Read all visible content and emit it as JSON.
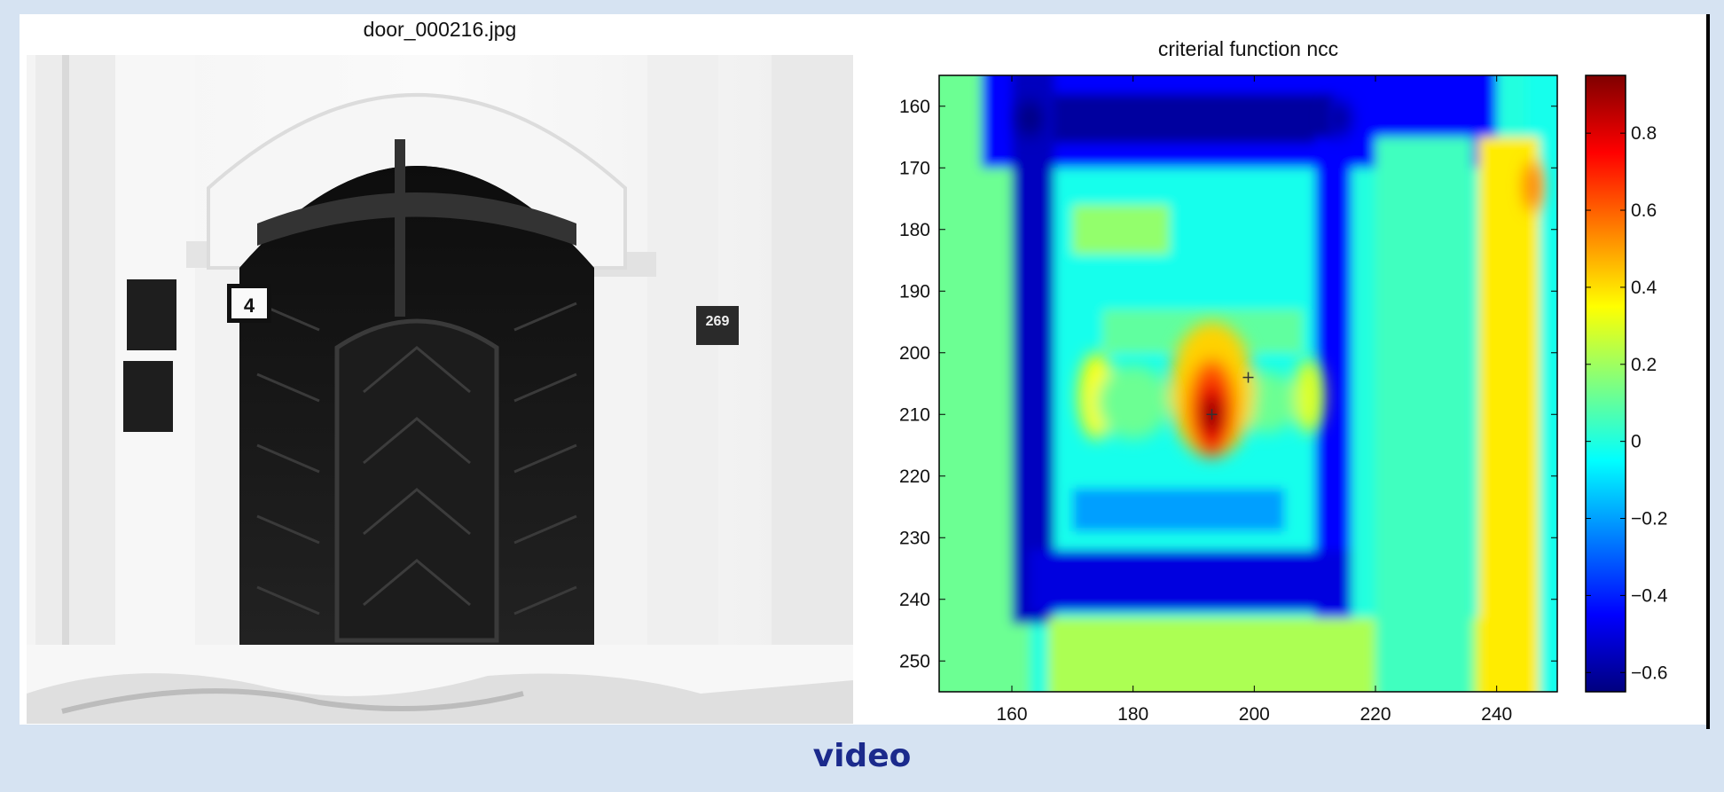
{
  "photo": {
    "title": "door_000216.jpg",
    "house_number": "4",
    "plaque_number": "269"
  },
  "footer": {
    "label": "video"
  },
  "chart_data": {
    "type": "heatmap",
    "title": "criterial function ncc",
    "xlabel": "",
    "ylabel": "",
    "xlim": [
      148,
      250
    ],
    "ylim": [
      155,
      255
    ],
    "x_ticks": [
      160,
      180,
      200,
      220,
      240
    ],
    "y_ticks": [
      160,
      170,
      180,
      190,
      200,
      210,
      220,
      230,
      240,
      250
    ],
    "y_axis_direction": "down",
    "grid": false,
    "colormap": "jet",
    "colorbar": {
      "min": -0.65,
      "max": 0.95,
      "ticks": [
        0.8,
        0.6,
        0.4,
        0.2,
        0,
        -0.2,
        -0.4,
        -0.6
      ]
    },
    "peak": {
      "x": 193,
      "y": 210,
      "value": 0.95
    },
    "markers": [
      {
        "x": 199,
        "y": 204,
        "symbol": "+"
      },
      {
        "x": 193,
        "y": 210,
        "symbol": "+"
      }
    ]
  }
}
